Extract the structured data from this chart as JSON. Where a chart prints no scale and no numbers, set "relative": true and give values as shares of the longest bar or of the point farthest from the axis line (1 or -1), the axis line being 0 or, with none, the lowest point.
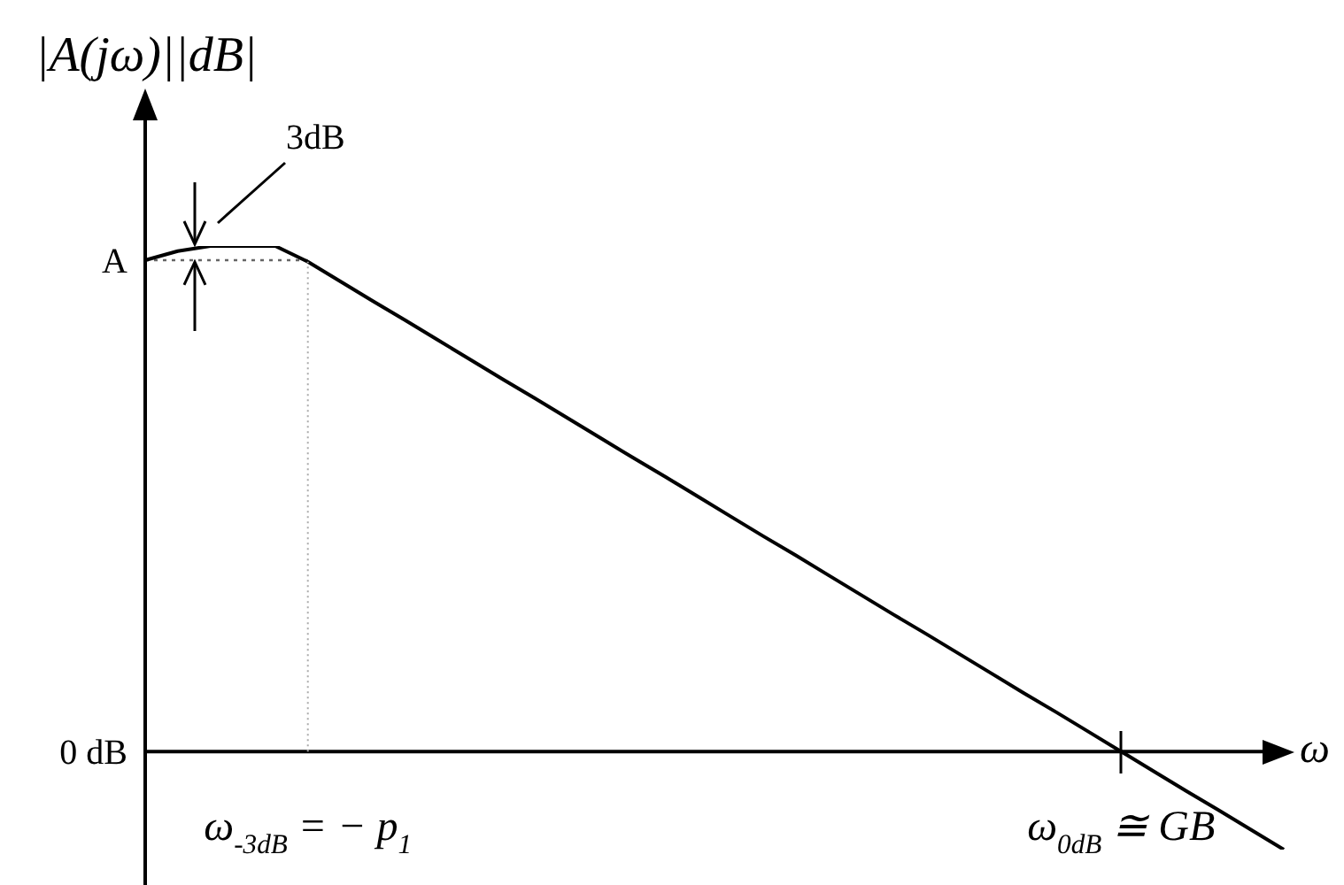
{
  "chart_data": {
    "type": "line",
    "relative": true,
    "ylabel": "|A(jω)||dB|",
    "xlabel": "ω",
    "marker": "none",
    "categories": [
      null,
      null,
      null,
      null,
      null,
      "ω$_{-3dB}$ = − p$_{1}$",
      null,
      null,
      null,
      null,
      null,
      null,
      null,
      null,
      null,
      null,
      null,
      null,
      null,
      null,
      null,
      null,
      null,
      null,
      null,
      null,
      null,
      null,
      null,
      null,
      "ω$_{0dB}$ ≅ GB",
      null,
      null,
      null,
      null,
      null
    ],
    "series": [
      {
        "color": "#000000",
        "values": [
          0.972,
          0.99,
          1,
          1,
          1,
          0.969,
          0.93,
          0.891,
          0.853,
          0.814,
          0.775,
          0.736,
          0.698,
          0.659,
          0.62,
          0.581,
          0.543,
          0.504,
          0.465,
          0.426,
          0.388,
          0.349,
          0.31,
          0.271,
          0.233,
          0.194,
          0.155,
          0.116,
          0.078,
          0.039,
          0,
          -0.039,
          -0.078,
          -0.116,
          -0.155,
          -0.194
        ]
      },
      {
        "color": "#666666",
        "line_style": "dotted",
        "values": [
          0.972,
          0.972,
          0.972,
          0.972,
          0.972,
          0.972,
          null,
          null,
          null,
          null,
          null,
          null,
          null,
          null,
          null,
          null,
          null,
          null,
          null,
          null,
          null,
          null,
          null,
          null,
          null,
          null,
          null,
          null,
          null,
          null,
          null,
          null,
          null,
          null,
          null,
          null
        ]
      }
    ],
    "annotations": [
      "A",
      "0 dB",
      "3dB"
    ]
  }
}
